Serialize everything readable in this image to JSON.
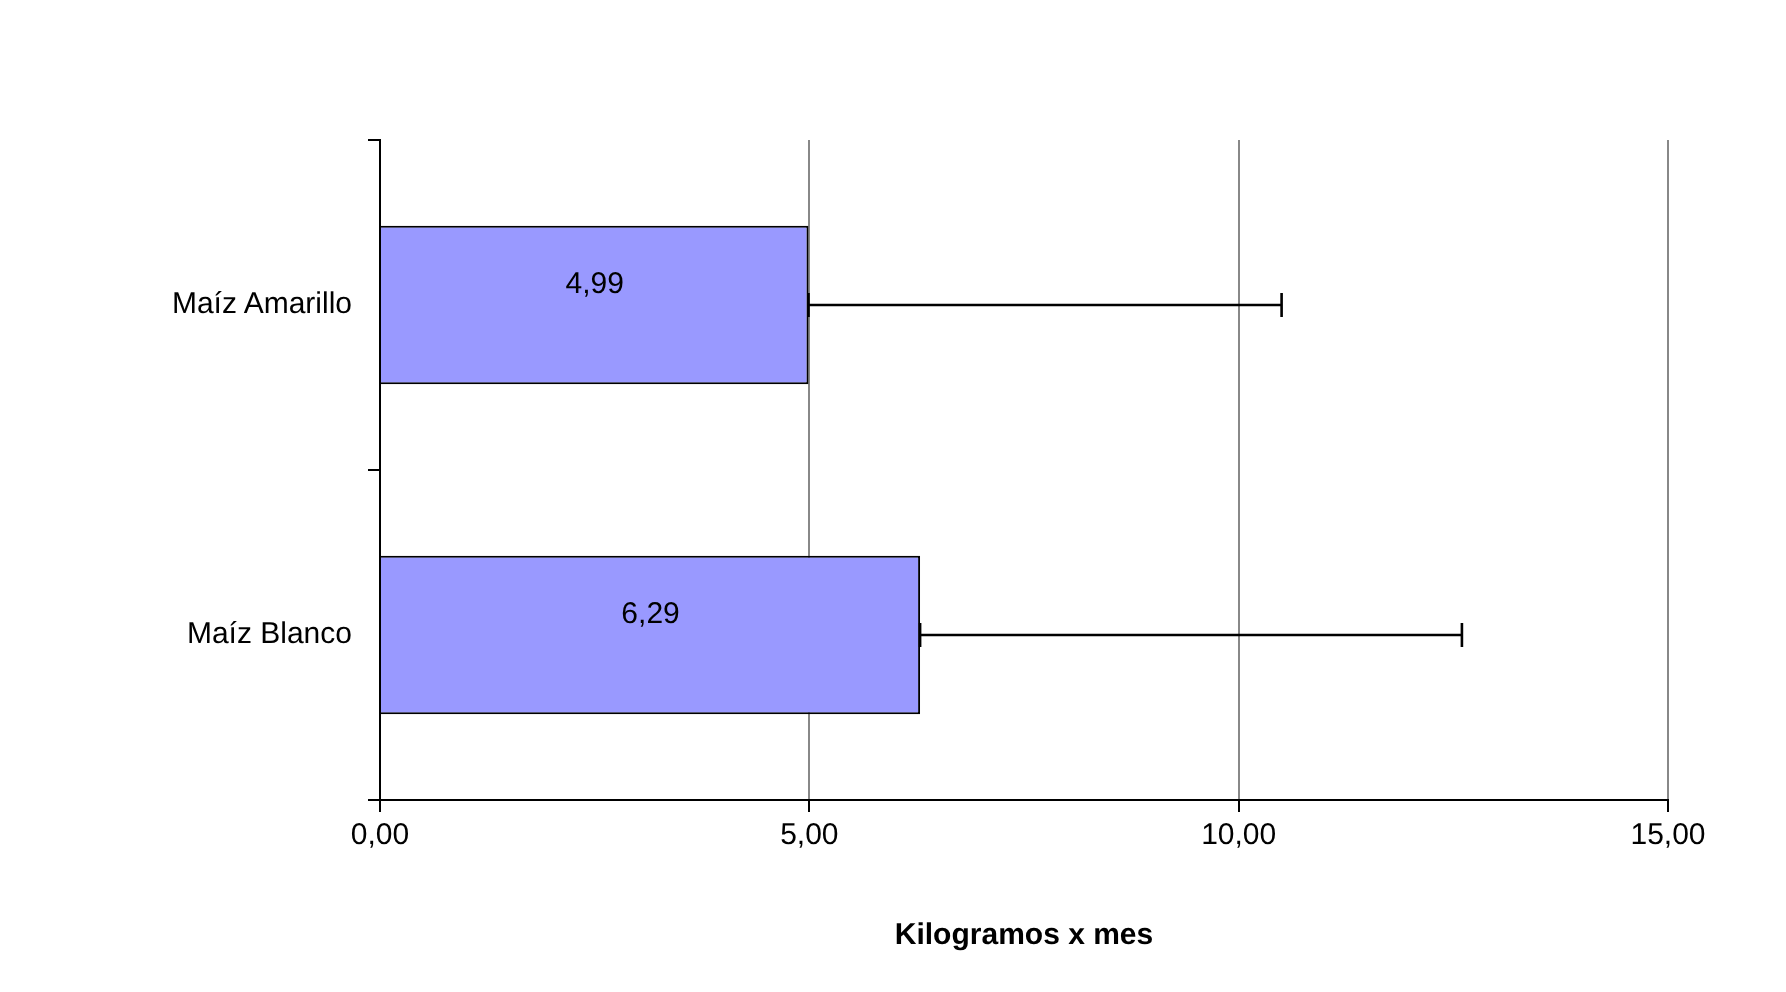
{
  "chart_data": {
    "type": "bar",
    "orientation": "horizontal",
    "xlabel": "Kilogramos x mes",
    "categories": [
      "Maíz Amarillo",
      "Maíz Blanco"
    ],
    "values": [
      4.99,
      6.29
    ],
    "color": "#9999ff",
    "value_labels": [
      "4,99",
      "6,29"
    ],
    "errors": [
      [
        4.99,
        10.5
      ],
      [
        6.29,
        12.6
      ]
    ],
    "xlim": [
      0,
      15
    ],
    "xticks": [
      {
        "value": 0,
        "label": "0,00"
      },
      {
        "value": 5,
        "label": "5,00"
      },
      {
        "value": 10,
        "label": "10,00"
      },
      {
        "value": 15,
        "label": "15,00"
      }
    ],
    "grid": "x",
    "legend": false
  }
}
